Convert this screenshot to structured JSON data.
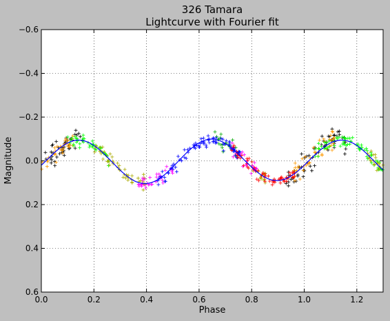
{
  "chart_data": {
    "type": "scatter",
    "title": "326 Tamara",
    "subtitle": "Lightcurve with Fourier fit",
    "xlabel": "Phase",
    "ylabel": "Magnitude",
    "xlim": [
      0.0,
      1.3
    ],
    "ylim": [
      0.6,
      -0.6
    ],
    "y_inverted": true,
    "grid": true,
    "xticks": [
      0.0,
      0.2,
      0.4,
      0.6,
      0.8,
      1.0,
      1.2
    ],
    "xtick_labels": [
      "0.0",
      "0.2",
      "0.4",
      "0.6",
      "0.8",
      "1.0",
      "1.2"
    ],
    "yticks": [
      -0.6,
      -0.4,
      -0.2,
      0.0,
      0.2,
      0.4,
      0.6
    ],
    "ytick_labels": [
      "−0.6",
      "−0.4",
      "−0.2",
      "0.0",
      "0.2",
      "0.4",
      "0.6"
    ],
    "marker": "+",
    "fit_curve": {
      "color": "#0000ff",
      "mean": 0.0,
      "fourier_terms": [
        {
          "harmonic": 1,
          "cos": -0.004,
          "sin": 0.006
        },
        {
          "harmonic": 2,
          "cos": 0.024,
          "sin": -0.094
        }
      ]
    },
    "series": [
      {
        "color": "#000000",
        "phase_ranges": [
          [
            0.0,
            0.16
          ],
          [
            0.93,
            1.16
          ]
        ],
        "scatter": 0.05
      },
      {
        "color": "#ff9900",
        "phase_ranges": [
          [
            0.0,
            0.12
          ],
          [
            0.96,
            1.12
          ]
        ],
        "scatter": 0.04
      },
      {
        "color": "#00ff00",
        "phase_ranges": [
          [
            0.1,
            0.26
          ],
          [
            1.04,
            1.3
          ]
        ],
        "scatter": 0.03
      },
      {
        "color": "#00aa00",
        "phase_ranges": [
          [
            0.66,
            0.75
          ]
        ],
        "scatter": 0.03
      },
      {
        "color": "#aaaa00",
        "phase_ranges": [
          [
            0.2,
            0.4
          ],
          [
            0.8,
            0.86
          ],
          [
            1.22,
            1.3
          ]
        ],
        "scatter": 0.03
      },
      {
        "color": "#ff00ff",
        "phase_ranges": [
          [
            0.37,
            0.5
          ],
          [
            0.72,
            0.82
          ]
        ],
        "scatter": 0.03
      },
      {
        "color": "#0000ff",
        "phase_ranges": [
          [
            0.44,
            0.76
          ]
        ],
        "scatter": 0.03
      },
      {
        "color": "#ff0000",
        "phase_ranges": [
          [
            0.72,
            0.97
          ]
        ],
        "scatter": 0.025
      }
    ]
  }
}
